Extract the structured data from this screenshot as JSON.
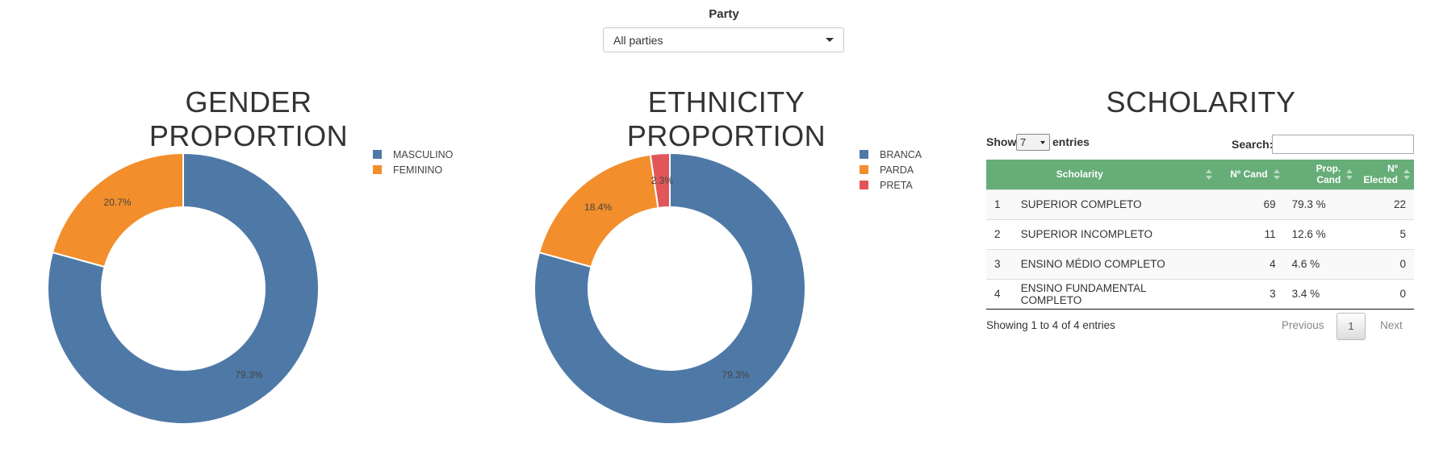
{
  "party_filter": {
    "label": "Party",
    "selected": "All parties"
  },
  "chart_data": [
    {
      "type": "pie",
      "donut": true,
      "title": "GENDER PROPORTION",
      "legend_position": "top-right",
      "categories": [
        "MASCULINO",
        "FEMININO"
      ],
      "values": [
        79.3,
        20.7
      ],
      "labels": [
        "79.3%",
        "20.7%"
      ],
      "colors": [
        "#4e79a7",
        "#f28e2b"
      ]
    },
    {
      "type": "pie",
      "donut": true,
      "title": "ETHNICITY PROPORTION",
      "legend_position": "top-right",
      "categories": [
        "BRANCA",
        "PARDA",
        "PRETA"
      ],
      "values": [
        79.3,
        18.4,
        2.3
      ],
      "labels": [
        "79.3%",
        "18.4%",
        "2.3%"
      ],
      "colors": [
        "#4e79a7",
        "#f28e2b",
        "#e15759"
      ]
    },
    {
      "type": "table",
      "title": "SCHOLARITY",
      "columns": [
        "",
        "Scholarity",
        "Nº Cand",
        "Prop. Cand",
        "Nº Elected"
      ],
      "rows": [
        [
          "1",
          "SUPERIOR COMPLETO",
          "69",
          "79.3 %",
          "22"
        ],
        [
          "2",
          "SUPERIOR INCOMPLETO",
          "11",
          "12.6 %",
          "5"
        ],
        [
          "3",
          "ENSINO MÉDIO COMPLETO",
          "4",
          "4.6 %",
          "0"
        ],
        [
          "4",
          "ENSINO FUNDAMENTAL COMPLETO",
          "3",
          "3.4 %",
          "0"
        ]
      ]
    }
  ],
  "table_controls": {
    "show_label": "Show",
    "page_length": "7",
    "entries_label": "entries",
    "search_label": "Search:",
    "search_value": "",
    "info": "Showing 1 to 4 of 4 entries",
    "previous": "Previous",
    "current_page": "1",
    "next": "Next",
    "header_color": "#66ad78"
  }
}
